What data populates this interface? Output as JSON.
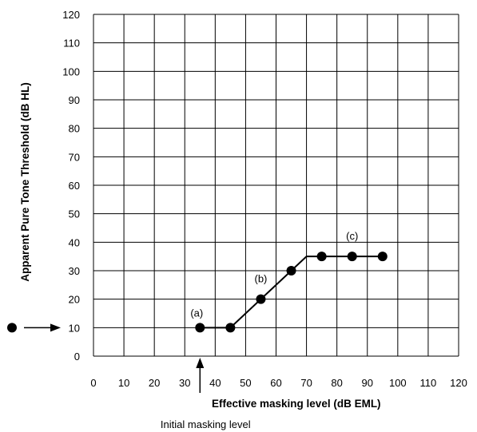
{
  "chart_data": {
    "type": "line",
    "title": "",
    "xlabel": "Effective masking level (dB EML)",
    "ylabel": "Apparent Pure Tone Threshold (dB HL)",
    "xlim": [
      0,
      120
    ],
    "ylim": [
      0,
      120
    ],
    "x_ticks": [
      "0",
      "10",
      "20",
      "30",
      "40",
      "50",
      "60",
      "70",
      "80",
      "90",
      "100",
      "110",
      "120"
    ],
    "y_ticks": [
      "0",
      "10",
      "20",
      "30",
      "40",
      "50",
      "60",
      "70",
      "80",
      "90",
      "100",
      "110",
      "120"
    ],
    "grid": true,
    "legend": "none",
    "series": [
      {
        "points": [
          {
            "x": 35,
            "y": 10,
            "marker": true
          },
          {
            "x": 45,
            "y": 10,
            "marker": true
          },
          {
            "x": 55,
            "y": 20,
            "marker": true
          },
          {
            "x": 65,
            "y": 30,
            "marker": true
          },
          {
            "x": 70,
            "y": 35,
            "marker": false
          },
          {
            "x": 75,
            "y": 35,
            "marker": true
          },
          {
            "x": 85,
            "y": 35,
            "marker": true
          },
          {
            "x": 95,
            "y": 35,
            "marker": true
          }
        ]
      }
    ],
    "annotations": [
      {
        "text": "(a)",
        "x": 35,
        "y": 10
      },
      {
        "text": "(b)",
        "x": 55,
        "y": 20
      },
      {
        "text": "(c)",
        "x": 85,
        "y": 35
      },
      {
        "text": "Initial masking level",
        "x": 35,
        "y": 0
      },
      {
        "text": "",
        "marker": "unmasked-threshold-dot",
        "x": null,
        "y": 10
      }
    ],
    "colors": {
      "line": "#000000",
      "grid": "#000000",
      "marker": "#000000"
    }
  }
}
